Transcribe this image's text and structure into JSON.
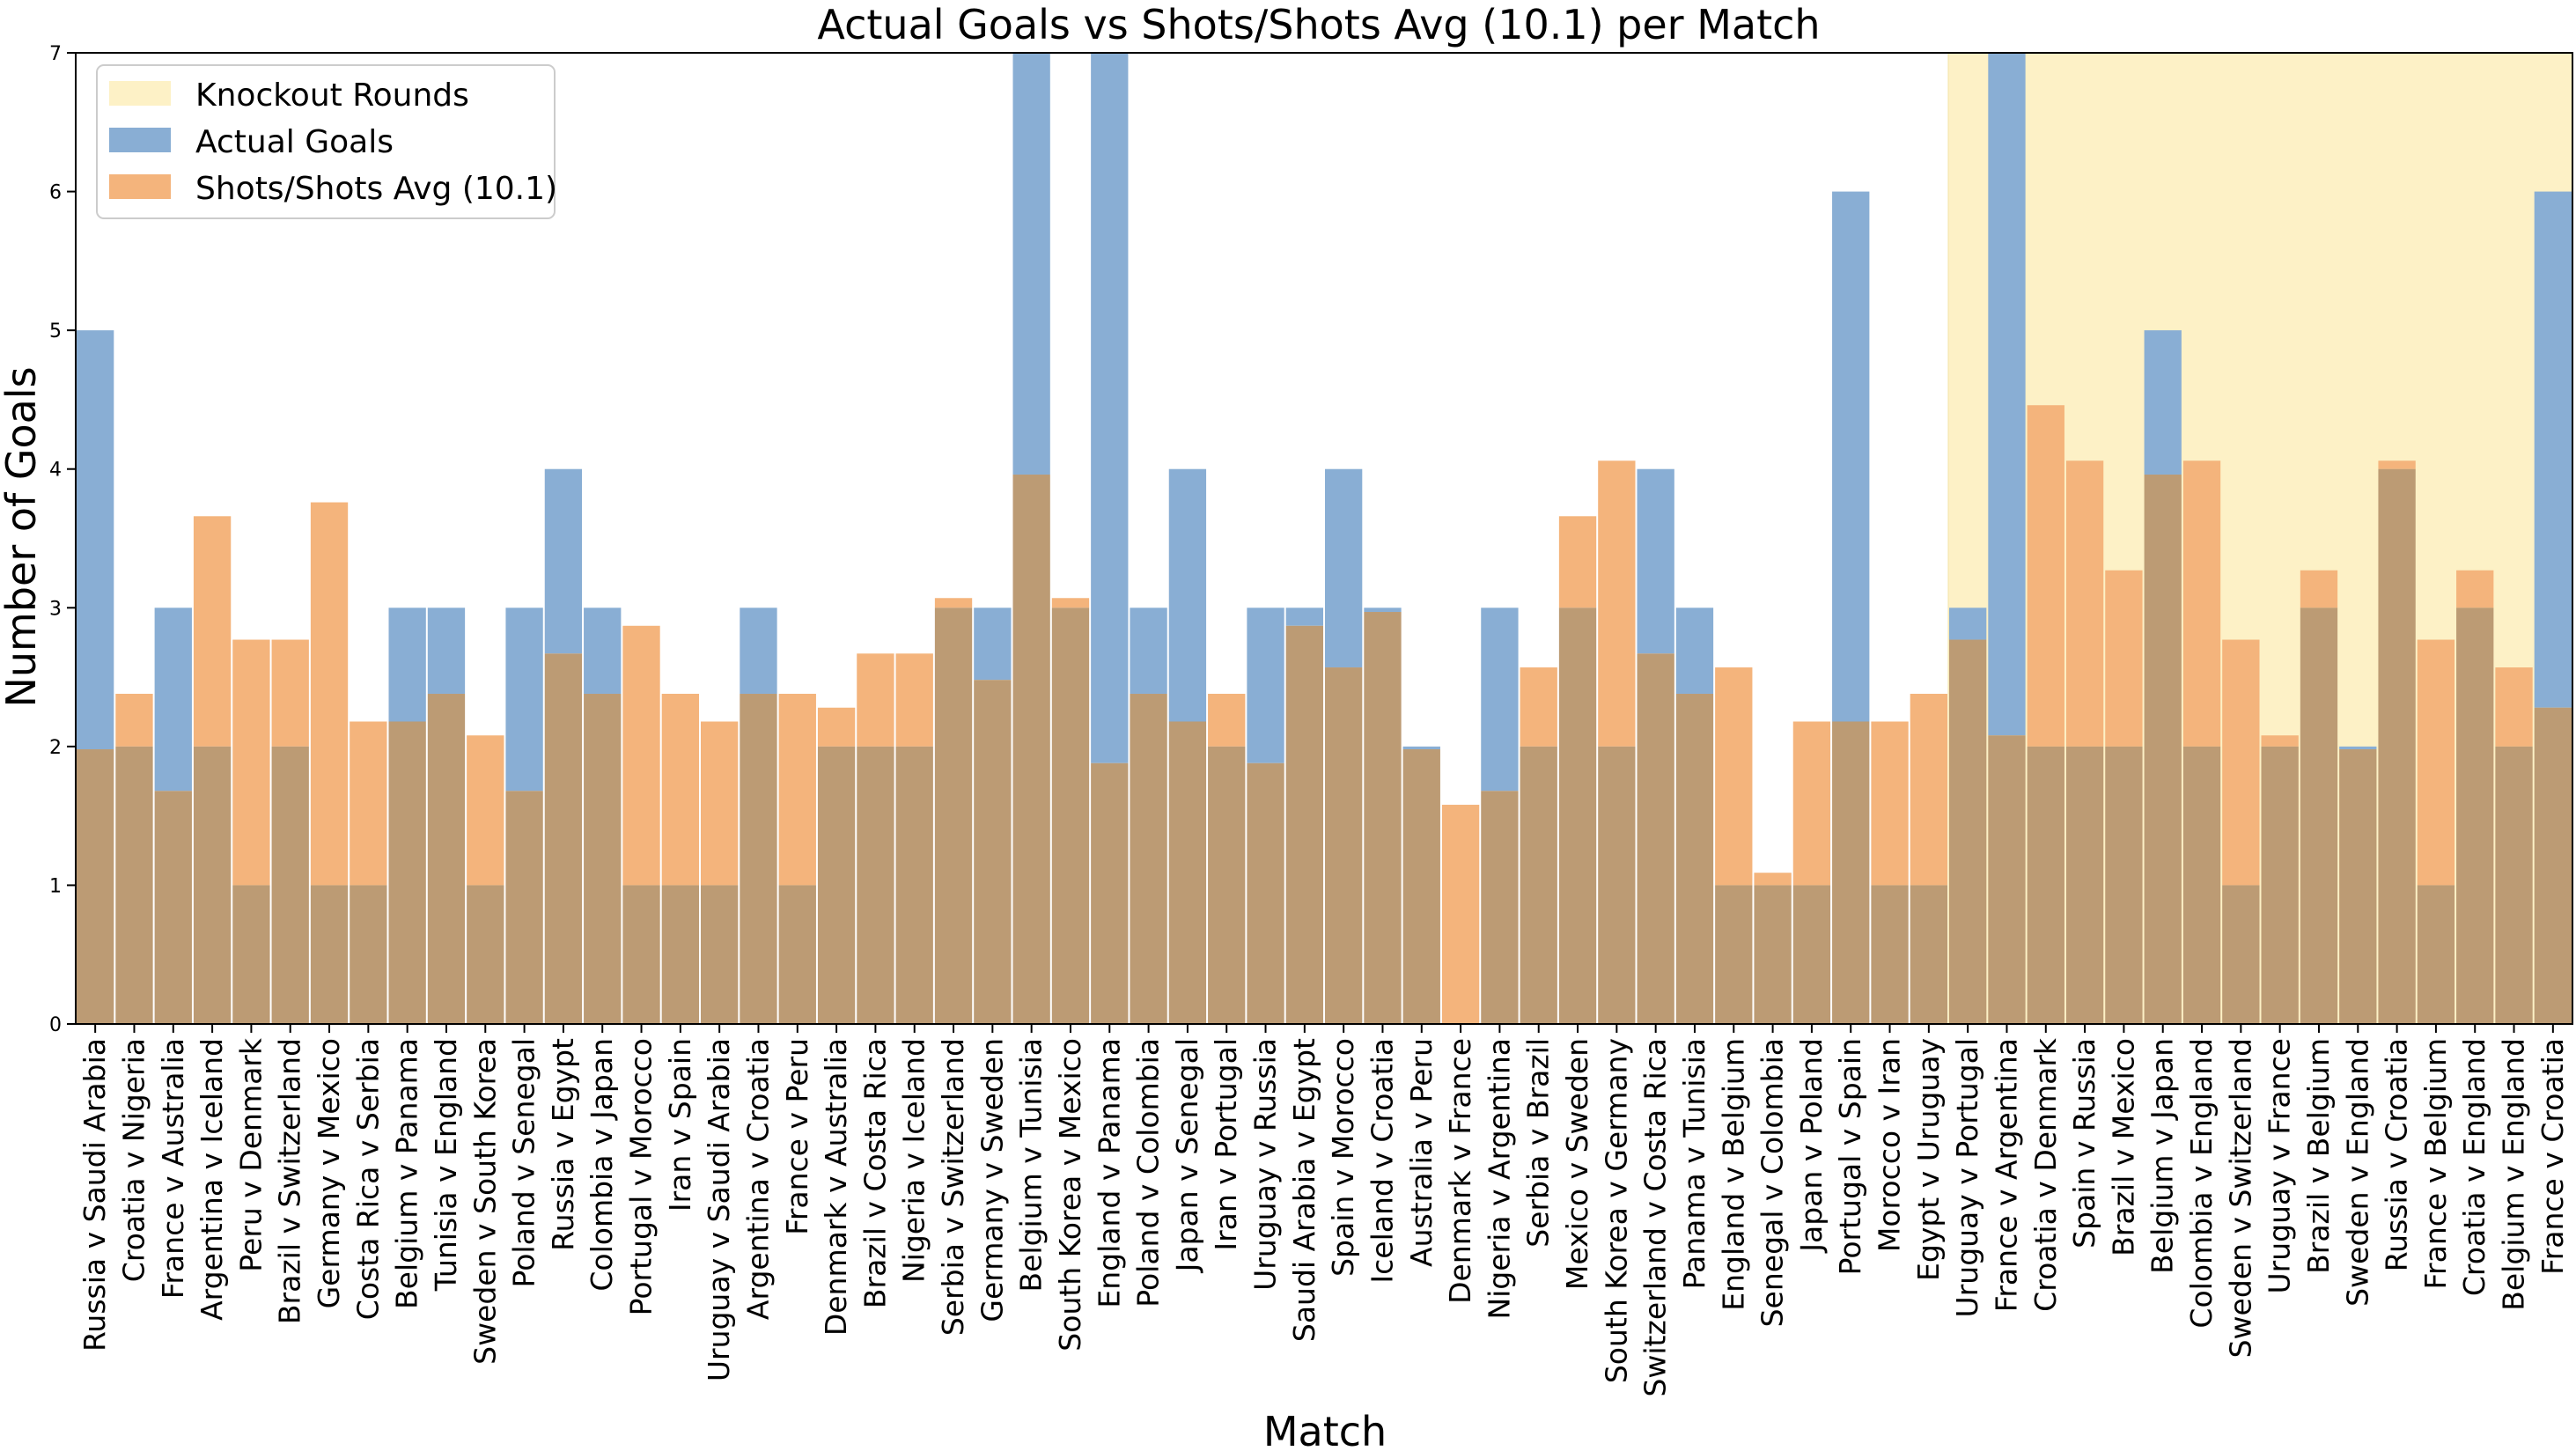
{
  "chart_data": {
    "type": "bar",
    "title": "Actual Goals vs Shots/Shots Avg (10.1) per Match",
    "xlabel": "Match",
    "ylabel": "Number of Goals",
    "ylim": [
      0,
      7
    ],
    "yticks": [
      0,
      1,
      2,
      3,
      4,
      5,
      6,
      7
    ],
    "legend_position": "top-left",
    "knockout_start_index": 48,
    "colors": {
      "knockout": "#fdf1c6",
      "actual": "#89aed4",
      "shots": "#f4b47c",
      "overlap": "#bc9b74"
    },
    "legend": {
      "knockout": "Knockout Rounds",
      "actual": "Actual Goals",
      "shots": "Shots/Shots Avg (10.1)"
    },
    "categories": [
      "Russia v Saudi Arabia",
      "Croatia v Nigeria",
      "France v Australia",
      "Argentina v Iceland",
      "Peru v Denmark",
      "Brazil v Switzerland",
      "Germany v Mexico",
      "Costa Rica v Serbia",
      "Belgium v Panama",
      "Tunisia v England",
      "Sweden v South Korea",
      "Poland v Senegal",
      "Russia v Egypt",
      "Colombia v Japan",
      "Portugal v Morocco",
      "Iran v Spain",
      "Uruguay v Saudi Arabia",
      "Argentina v Croatia",
      "France v Peru",
      "Denmark v Australia",
      "Brazil v Costa Rica",
      "Nigeria v Iceland",
      "Serbia v Switzerland",
      "Germany v Sweden",
      "Belgium v Tunisia",
      "South Korea v Mexico",
      "England v Panama",
      "Poland v Colombia",
      "Japan v Senegal",
      "Iran v Portugal",
      "Uruguay v Russia",
      "Saudi Arabia v Egypt",
      "Spain v Morocco",
      "Iceland v Croatia",
      "Australia v Peru",
      "Denmark v France",
      "Nigeria v Argentina",
      "Serbia v Brazil",
      "Mexico v Sweden",
      "South Korea v Germany",
      "Switzerland v Costa Rica",
      "Panama v Tunisia",
      "England v Belgium",
      "Senegal v Colombia",
      "Japan v Poland",
      "Portugal v Spain",
      "Morocco v Iran",
      "Egypt v Uruguay",
      "Uruguay v Portugal",
      "France v Argentina",
      "Croatia v Denmark",
      "Spain v Russia",
      "Brazil v Mexico",
      "Belgium v Japan",
      "Colombia v England",
      "Sweden v Switzerland",
      "Uruguay v France",
      "Brazil v Belgium",
      "Sweden v England",
      "Russia v Croatia",
      "France v Belgium",
      "Croatia v England",
      "Belgium v England",
      "France v Croatia"
    ],
    "series": [
      {
        "name": "Actual Goals",
        "values": [
          5,
          2,
          3,
          2,
          1,
          2,
          1,
          1,
          3,
          3,
          1,
          3,
          4,
          3,
          1,
          1,
          1,
          3,
          1,
          2,
          2,
          2,
          3,
          3,
          7,
          3,
          7,
          3,
          4,
          2,
          3,
          3,
          4,
          3,
          2,
          0,
          3,
          2,
          3,
          2,
          4,
          3,
          1,
          1,
          1,
          6,
          1,
          1,
          3,
          7,
          2,
          2,
          2,
          5,
          2,
          1,
          2,
          3,
          2,
          4,
          1,
          3,
          2,
          6
        ]
      },
      {
        "name": "Shots/Shots Avg (10.1)",
        "values": [
          1.98,
          2.38,
          1.68,
          3.66,
          2.77,
          2.77,
          3.76,
          2.18,
          2.18,
          2.38,
          2.08,
          1.68,
          2.67,
          2.38,
          2.87,
          2.38,
          2.18,
          2.38,
          2.38,
          2.28,
          2.67,
          2.67,
          3.07,
          2.48,
          3.96,
          3.07,
          1.88,
          2.38,
          2.18,
          2.38,
          1.88,
          2.87,
          2.57,
          2.97,
          1.98,
          1.58,
          1.68,
          2.57,
          3.66,
          4.06,
          2.67,
          2.38,
          2.57,
          1.09,
          2.18,
          2.18,
          2.18,
          2.38,
          2.77,
          2.08,
          4.46,
          4.06,
          3.27,
          3.96,
          4.06,
          2.77,
          2.08,
          3.27,
          1.98,
          4.06,
          2.77,
          3.27,
          2.57,
          2.28
        ]
      }
    ]
  }
}
